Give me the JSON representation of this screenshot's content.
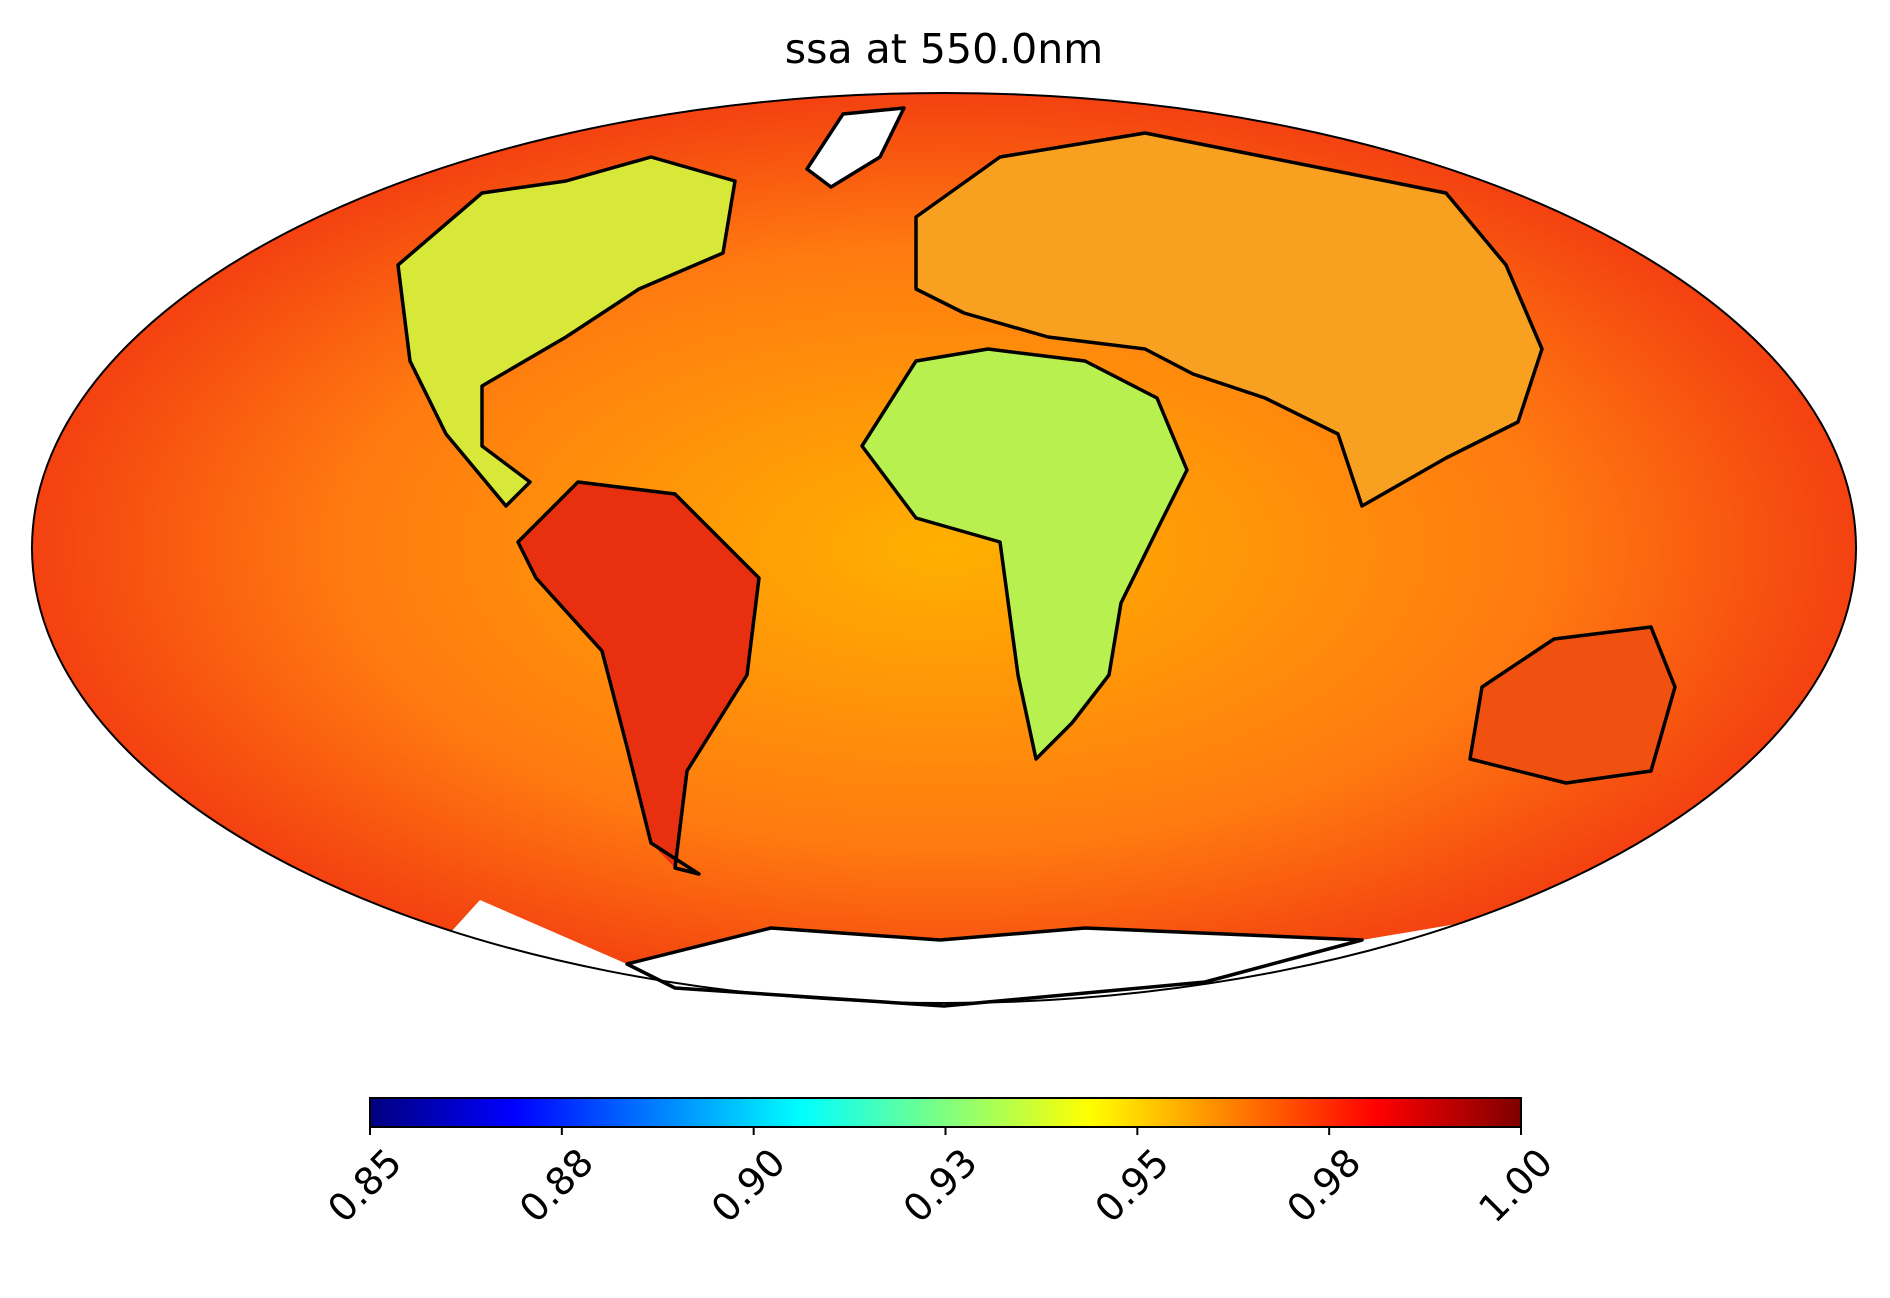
{
  "chart_data": {
    "type": "map",
    "title": "ssa at 550.0nm",
    "colormap": "jet",
    "clim": [
      0.85,
      1.0
    ],
    "colorbar_ticks": [
      0.85,
      {
        "value": 0.875,
        "label": "0.88"
      },
      {
        "value": 0.9,
        "label": "0.90"
      },
      {
        "value": 0.925,
        "label": "0.93"
      },
      0.95,
      {
        "value": 0.975,
        "label": "0.98"
      },
      {
        "value": 1.0,
        "label": "1.00"
      }
    ]
  }
}
